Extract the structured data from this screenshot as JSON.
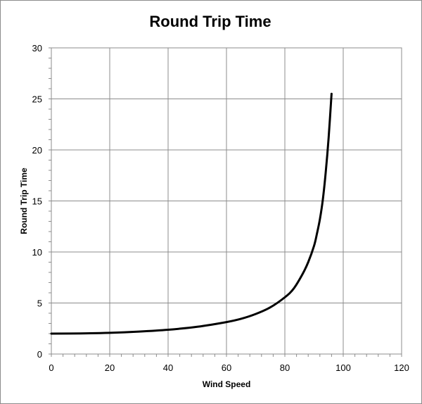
{
  "chart_data": {
    "type": "line",
    "title": "Round Trip Time",
    "xlabel": "Wind Speed",
    "ylabel": "Round Trip Time",
    "xlim": [
      0,
      120
    ],
    "ylim": [
      0,
      30
    ],
    "xticks": [
      0,
      20,
      40,
      60,
      80,
      100,
      120
    ],
    "yticks": [
      0,
      5,
      10,
      15,
      20,
      25,
      30
    ],
    "xtick_labels": [
      "0",
      "20",
      "40",
      "60",
      "80",
      "100",
      "120"
    ],
    "ytick_labels": [
      "0",
      "5",
      "10",
      "15",
      "20",
      "25",
      "30"
    ],
    "x_minor_step": 4,
    "y_minor_step": 1,
    "grid": true,
    "legend": "none",
    "line_color": "#000000",
    "series": [
      {
        "x": [
          0,
          10,
          20,
          30,
          40,
          50,
          60,
          65,
          70,
          75,
          80,
          83,
          86,
          88,
          90,
          91,
          92,
          93,
          94,
          95,
          96
        ],
        "y": [
          2.0,
          2.02,
          2.08,
          2.2,
          2.38,
          2.67,
          3.13,
          3.45,
          3.92,
          4.57,
          5.56,
          6.4,
          7.8,
          9.0,
          10.6,
          11.8,
          13.2,
          15.1,
          17.8,
          21.2,
          25.5
        ]
      }
    ]
  }
}
